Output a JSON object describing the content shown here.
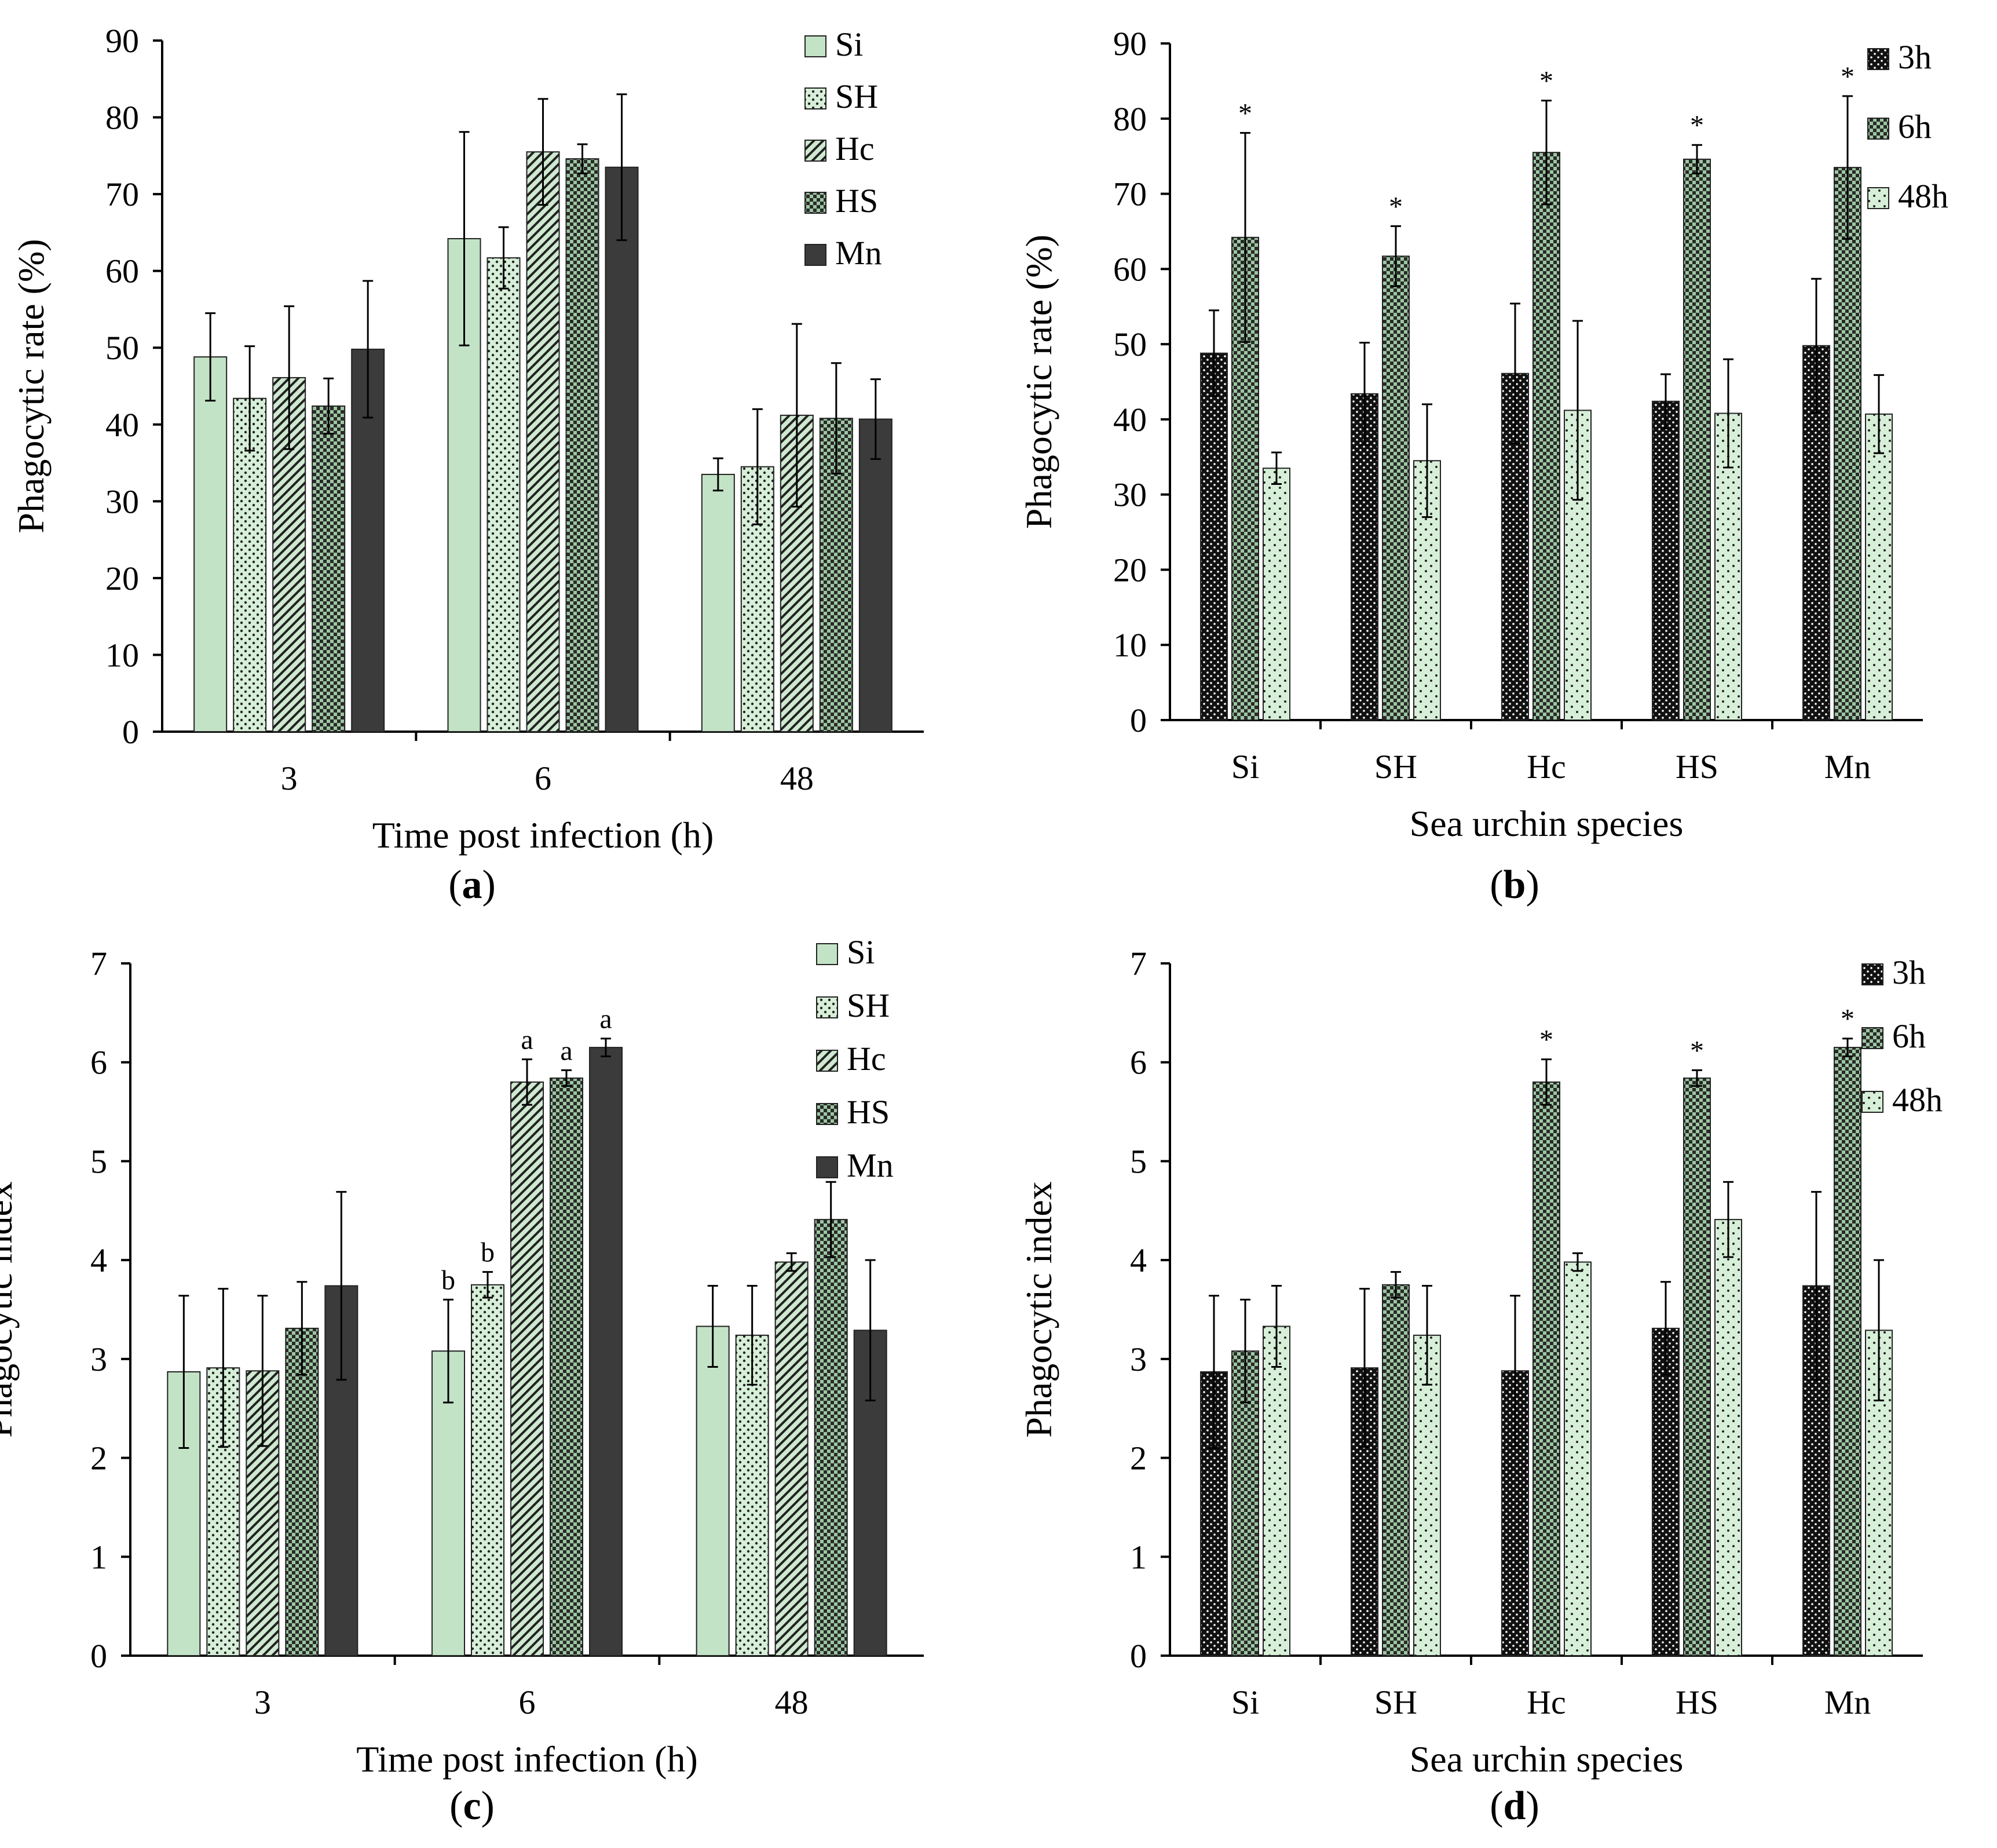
{
  "colors": {
    "Si": "#c3e3c6",
    "SH": "#d7efd8",
    "Hc": "#cfe9d1",
    "HS": "#b0d6b4",
    "Mn": "#3b3b3b",
    "3h": "#1a1a1a",
    "6h": "#9cc7a1",
    "48h": "#d7efd8",
    "axis": "#000000"
  },
  "panels": {
    "a": {
      "label_prefix": "(",
      "label_letter": "a",
      "label_suffix": ")"
    },
    "b": {
      "label_prefix": "(",
      "label_letter": "b",
      "label_suffix": ")"
    },
    "c": {
      "label_prefix": "(",
      "label_letter": "c",
      "label_suffix": ")"
    },
    "d": {
      "label_prefix": "(",
      "label_letter": "d",
      "label_suffix": ")"
    }
  },
  "chart_data": [
    {
      "id": "a",
      "type": "bar",
      "grouping": "time",
      "categories": [
        "3",
        "6",
        "48"
      ],
      "xlabel": "Time post infection (h)",
      "ylabel": "Phagocytic rate (%)",
      "ylim": [
        0,
        90
      ],
      "yticks": [
        0,
        10,
        20,
        30,
        40,
        50,
        60,
        70,
        80,
        90
      ],
      "legend_position": "top-right",
      "series": [
        {
          "name": "Si",
          "pattern": "solid-light",
          "values": [
            48.8,
            64.2,
            33.5
          ],
          "errors": [
            5.7,
            13.9,
            2.1
          ],
          "annotations": [
            "",
            "",
            ""
          ]
        },
        {
          "name": "SH",
          "pattern": "dots",
          "values": [
            43.4,
            61.7,
            34.5
          ],
          "errors": [
            6.8,
            4.0,
            7.5
          ],
          "annotations": [
            "",
            "",
            ""
          ]
        },
        {
          "name": "Hc",
          "pattern": "diagonal",
          "values": [
            46.1,
            75.5,
            41.2
          ],
          "errors": [
            9.3,
            6.9,
            11.9
          ],
          "annotations": [
            "",
            "",
            ""
          ]
        },
        {
          "name": "HS",
          "pattern": "checker",
          "values": [
            42.4,
            74.6,
            40.8
          ],
          "errors": [
            3.6,
            1.9,
            7.2
          ],
          "annotations": [
            "",
            "",
            ""
          ]
        },
        {
          "name": "Mn",
          "pattern": "solid-dark",
          "values": [
            49.8,
            73.5,
            40.7
          ],
          "errors": [
            8.9,
            9.5,
            5.2
          ],
          "annotations": [
            "",
            "",
            ""
          ]
        }
      ]
    },
    {
      "id": "b",
      "type": "bar",
      "grouping": "species",
      "categories": [
        "Si",
        "SH",
        "Hc",
        "HS",
        "Mn"
      ],
      "xlabel": "Sea urchin species",
      "ylabel": "Phagocytic rate (%)",
      "ylim": [
        0,
        90
      ],
      "yticks": [
        0,
        10,
        20,
        30,
        40,
        50,
        60,
        70,
        80,
        90
      ],
      "legend_position": "top-right",
      "series": [
        {
          "name": "3h",
          "pattern": "dark-dots",
          "values": [
            48.8,
            43.4,
            46.1,
            42.4,
            49.8
          ],
          "errors": [
            5.7,
            6.8,
            9.3,
            3.6,
            8.9
          ],
          "annotations": [
            "",
            "",
            "",
            "",
            ""
          ]
        },
        {
          "name": "6h",
          "pattern": "checker",
          "values": [
            64.2,
            61.7,
            75.5,
            74.6,
            73.5
          ],
          "errors": [
            13.9,
            4.0,
            6.9,
            1.9,
            9.5
          ],
          "annotations": [
            "*",
            "*",
            "*",
            "*",
            "*"
          ]
        },
        {
          "name": "48h",
          "pattern": "light-dots",
          "values": [
            33.5,
            34.5,
            41.2,
            40.8,
            40.7
          ],
          "errors": [
            2.1,
            7.5,
            11.9,
            7.2,
            5.2
          ],
          "annotations": [
            "",
            "",
            "",
            "",
            ""
          ]
        }
      ]
    },
    {
      "id": "c",
      "type": "bar",
      "grouping": "time",
      "categories": [
        "3",
        "6",
        "48"
      ],
      "xlabel": "Time post infection (h)",
      "ylabel": "Phagocytic index",
      "ylim": [
        0,
        7
      ],
      "yticks": [
        0,
        1,
        2,
        3,
        4,
        5,
        6,
        7
      ],
      "legend_position": "top-right",
      "series": [
        {
          "name": "Si",
          "pattern": "solid-light",
          "values": [
            2.87,
            3.08,
            3.33
          ],
          "errors": [
            0.77,
            0.52,
            0.41
          ],
          "annotations": [
            "",
            "b",
            ""
          ]
        },
        {
          "name": "SH",
          "pattern": "dots",
          "values": [
            2.91,
            3.75,
            3.24
          ],
          "errors": [
            0.8,
            0.13,
            0.5
          ],
          "annotations": [
            "",
            "b",
            ""
          ]
        },
        {
          "name": "Hc",
          "pattern": "diagonal",
          "values": [
            2.88,
            5.8,
            3.98
          ],
          "errors": [
            0.76,
            0.23,
            0.09
          ],
          "annotations": [
            "",
            "a",
            ""
          ]
        },
        {
          "name": "HS",
          "pattern": "checker",
          "values": [
            3.31,
            5.84,
            4.41
          ],
          "errors": [
            0.47,
            0.08,
            0.38
          ],
          "annotations": [
            "",
            "a",
            ""
          ]
        },
        {
          "name": "Mn",
          "pattern": "solid-dark",
          "values": [
            3.74,
            6.15,
            3.29
          ],
          "errors": [
            0.95,
            0.09,
            0.71
          ],
          "annotations": [
            "",
            "a",
            ""
          ]
        }
      ]
    },
    {
      "id": "d",
      "type": "bar",
      "grouping": "species",
      "categories": [
        "Si",
        "SH",
        "Hc",
        "HS",
        "Mn"
      ],
      "xlabel": "Sea urchin species",
      "ylabel": "Phagocytic index",
      "ylim": [
        0,
        7
      ],
      "yticks": [
        0,
        1,
        2,
        3,
        4,
        5,
        6,
        7
      ],
      "legend_position": "top-right",
      "series": [
        {
          "name": "3h",
          "pattern": "dark-dots",
          "values": [
            2.87,
            2.91,
            2.88,
            3.31,
            3.74
          ],
          "errors": [
            0.77,
            0.8,
            0.76,
            0.47,
            0.95
          ],
          "annotations": [
            "",
            "",
            "",
            "",
            ""
          ]
        },
        {
          "name": "6h",
          "pattern": "checker",
          "values": [
            3.08,
            3.75,
            5.8,
            5.84,
            6.15
          ],
          "errors": [
            0.52,
            0.13,
            0.23,
            0.08,
            0.09
          ],
          "annotations": [
            "",
            "",
            "*",
            "*",
            "*"
          ]
        },
        {
          "name": "48h",
          "pattern": "light-dots",
          "values": [
            3.33,
            3.24,
            3.98,
            4.41,
            3.29
          ],
          "errors": [
            0.41,
            0.5,
            0.09,
            0.38,
            0.71
          ],
          "annotations": [
            "",
            "",
            "",
            "",
            ""
          ]
        }
      ]
    }
  ]
}
